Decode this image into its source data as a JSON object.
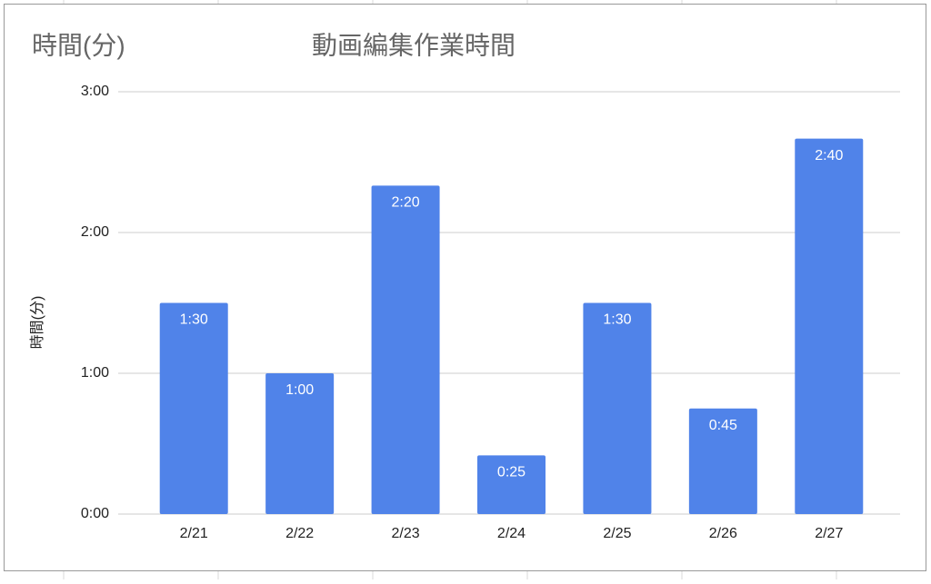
{
  "chart_data": {
    "type": "bar",
    "title": "動画編集作業時間",
    "subtitle": "時間(分)",
    "ylabel": "時間(分)",
    "categories": [
      "2/21",
      "2/22",
      "2/23",
      "2/24",
      "2/25",
      "2/26",
      "2/27"
    ],
    "values": [
      90,
      60,
      140,
      25,
      90,
      45,
      160
    ],
    "value_labels": [
      "1:30",
      "1:00",
      "2:20",
      "0:25",
      "1:30",
      "0:45",
      "2:40"
    ],
    "color": "#5083e9",
    "ylim": [
      0,
      180
    ],
    "yticks": [
      {
        "value": 0,
        "label": "0:00"
      },
      {
        "value": 60,
        "label": "1:00"
      },
      {
        "value": 120,
        "label": "2:00"
      },
      {
        "value": 180,
        "label": "3:00"
      }
    ],
    "grid": true
  }
}
